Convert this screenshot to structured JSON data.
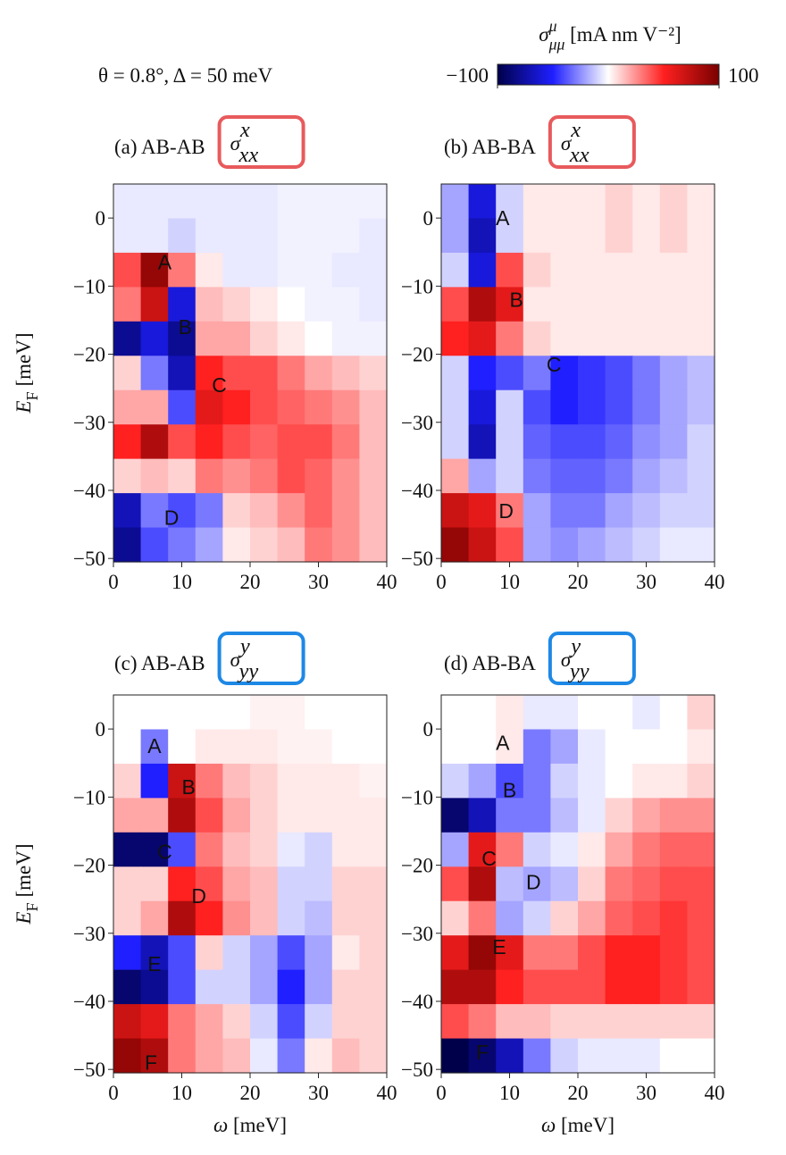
{
  "figure": {
    "title": "θ = 0.8°,  Δ = 50 meV",
    "colorbar": {
      "label": {
        "symbol": "σ",
        "sup": "μ",
        "sub": "μμ",
        "unit": " [mA nm V⁻²]"
      },
      "zlim": [
        -100,
        100
      ],
      "ticks": [
        {
          "value": -100,
          "label": "−100"
        },
        100
      ],
      "colormap": [
        "#00004a",
        "#1f1fff",
        "#ffffff",
        "#ff2020",
        "#7a0000"
      ]
    }
  },
  "chart_data": [
    {
      "type": "heatmap",
      "title": "(a) AB-AB",
      "quantity": {
        "symbol": "σ",
        "sup": "x",
        "sub": "xx",
        "color": "#e85a5c"
      },
      "ylabel": {
        "symbol": "E",
        "sub": "F",
        "unit": " [meV]"
      },
      "xlim": [
        0,
        40
      ],
      "ylim": [
        -50.5,
        5
      ],
      "xticks": [
        0,
        10,
        20,
        30,
        40
      ],
      "yticks": [
        0,
        {
          "value": -10,
          "label": "−10"
        },
        {
          "value": -20,
          "label": "−20"
        },
        {
          "value": -30,
          "label": "−30"
        },
        {
          "value": -40,
          "label": "−40"
        },
        {
          "value": -50,
          "label": "−50"
        }
      ],
      "annotations": [
        "A",
        "B",
        "C",
        "D"
      ],
      "values": [
        [
          -5,
          -5,
          -5,
          -5,
          -5,
          -5,
          -3,
          -3,
          -3,
          -3
        ],
        [
          -5,
          -5,
          -10,
          -5,
          -5,
          -5,
          -3,
          -3,
          -3,
          -5
        ],
        [
          40,
          90,
          30,
          5,
          -5,
          -5,
          -3,
          -3,
          -5,
          -5
        ],
        [
          30,
          70,
          -60,
          15,
          10,
          5,
          0,
          -3,
          -3,
          -5
        ],
        [
          -80,
          -60,
          -80,
          20,
          20,
          10,
          5,
          0,
          -3,
          -3
        ],
        [
          10,
          -30,
          -70,
          50,
          40,
          40,
          30,
          20,
          15,
          10
        ],
        [
          20,
          20,
          -40,
          60,
          50,
          40,
          35,
          30,
          25,
          15
        ],
        [
          50,
          80,
          40,
          50,
          40,
          35,
          40,
          40,
          30,
          15
        ],
        [
          10,
          15,
          10,
          30,
          25,
          30,
          40,
          35,
          25,
          15
        ],
        [
          -70,
          -30,
          -40,
          -30,
          10,
          15,
          25,
          35,
          25,
          15
        ],
        [
          -80,
          -40,
          -30,
          -20,
          5,
          10,
          15,
          30,
          25,
          15
        ]
      ]
    },
    {
      "type": "heatmap",
      "title": "(b) AB-BA",
      "quantity": {
        "symbol": "σ",
        "sup": "x",
        "sub": "xx",
        "color": "#e85a5c"
      },
      "xlim": [
        0,
        40
      ],
      "ylim": [
        -50.5,
        5
      ],
      "xticks": [
        0,
        10,
        20,
        30,
        40
      ],
      "yticks": [
        0,
        {
          "value": -10,
          "label": "−10"
        },
        {
          "value": -20,
          "label": "−20"
        },
        {
          "value": -30,
          "label": "−30"
        },
        {
          "value": -40,
          "label": "−40"
        },
        {
          "value": -50,
          "label": "−50"
        }
      ],
      "annotations": [
        "A",
        "B",
        "C",
        "D"
      ],
      "values": [
        [
          -20,
          -60,
          -10,
          5,
          5,
          5,
          10,
          5,
          10,
          5
        ],
        [
          -20,
          -70,
          -10,
          5,
          5,
          5,
          10,
          5,
          10,
          5
        ],
        [
          -10,
          -60,
          40,
          10,
          5,
          5,
          5,
          5,
          5,
          5
        ],
        [
          40,
          80,
          60,
          5,
          5,
          5,
          5,
          5,
          5,
          5
        ],
        [
          50,
          60,
          30,
          10,
          5,
          5,
          5,
          5,
          5,
          5
        ],
        [
          -10,
          -50,
          -40,
          -30,
          -50,
          -45,
          -40,
          -30,
          -20,
          -15
        ],
        [
          -10,
          -60,
          -10,
          -40,
          -50,
          -45,
          -40,
          -30,
          -20,
          -15
        ],
        [
          -10,
          -70,
          -10,
          -35,
          -40,
          -40,
          -35,
          -25,
          -20,
          -10
        ],
        [
          20,
          -20,
          -10,
          -30,
          -35,
          -35,
          -30,
          -20,
          -15,
          -10
        ],
        [
          70,
          60,
          30,
          -20,
          -30,
          -30,
          -20,
          -15,
          -10,
          -10
        ],
        [
          90,
          70,
          40,
          -20,
          -25,
          -20,
          -15,
          -10,
          -5,
          -5
        ]
      ]
    },
    {
      "type": "heatmap",
      "title": "(c) AB-AB",
      "quantity": {
        "symbol": "σ",
        "sup": "y",
        "sub": "yy",
        "color": "#1e88e5"
      },
      "ylabel": {
        "symbol": "E",
        "sub": "F",
        "unit": " [meV]"
      },
      "xlabel": {
        "symbol": "ω",
        "unit": " [meV]"
      },
      "xlim": [
        0,
        40
      ],
      "ylim": [
        -50.5,
        5
      ],
      "xticks": [
        0,
        10,
        20,
        30,
        40
      ],
      "yticks": [
        0,
        {
          "value": -10,
          "label": "−10"
        },
        {
          "value": -20,
          "label": "−20"
        },
        {
          "value": -30,
          "label": "−30"
        },
        {
          "value": -40,
          "label": "−40"
        },
        {
          "value": -50,
          "label": "−50"
        }
      ],
      "annotations": [
        "A",
        "B",
        "C",
        "D",
        "E",
        "F"
      ],
      "values": [
        [
          0,
          0,
          0,
          0,
          0,
          3,
          3,
          0,
          0,
          0
        ],
        [
          0,
          -30,
          0,
          5,
          5,
          5,
          3,
          3,
          0,
          0
        ],
        [
          10,
          -50,
          70,
          30,
          15,
          10,
          5,
          5,
          5,
          3
        ],
        [
          20,
          20,
          80,
          40,
          20,
          10,
          5,
          5,
          5,
          5
        ],
        [
          -90,
          -90,
          -40,
          30,
          15,
          10,
          -5,
          -10,
          5,
          5
        ],
        [
          10,
          10,
          50,
          40,
          20,
          15,
          -10,
          -10,
          10,
          10
        ],
        [
          10,
          20,
          80,
          50,
          25,
          15,
          -10,
          -15,
          10,
          10
        ],
        [
          -50,
          -70,
          -40,
          10,
          -10,
          -20,
          -40,
          -20,
          5,
          10
        ],
        [
          -90,
          -80,
          -40,
          -10,
          -10,
          -20,
          -50,
          -20,
          10,
          10
        ],
        [
          70,
          60,
          30,
          20,
          10,
          -10,
          -40,
          -10,
          10,
          10
        ],
        [
          90,
          80,
          30,
          20,
          15,
          -5,
          -30,
          5,
          15,
          10
        ]
      ]
    },
    {
      "type": "heatmap",
      "title": "(d) AB-BA",
      "quantity": {
        "symbol": "σ",
        "sup": "y",
        "sub": "yy",
        "color": "#1e88e5"
      },
      "xlabel": {
        "symbol": "ω",
        "unit": " [meV]"
      },
      "xlim": [
        0,
        40
      ],
      "ylim": [
        -50.5,
        5
      ],
      "xticks": [
        0,
        10,
        20,
        30,
        40
      ],
      "yticks": [
        0,
        {
          "value": -10,
          "label": "−10"
        },
        {
          "value": -20,
          "label": "−20"
        },
        {
          "value": -30,
          "label": "−30"
        },
        {
          "value": -40,
          "label": "−40"
        },
        {
          "value": -50,
          "label": "−50"
        }
      ],
      "annotations": [
        "A",
        "B",
        "C",
        "D",
        "E",
        "F"
      ],
      "values": [
        [
          0,
          0,
          5,
          -5,
          -5,
          0,
          0,
          -5,
          0,
          10
        ],
        [
          0,
          0,
          5,
          -30,
          -20,
          -5,
          0,
          0,
          0,
          5
        ],
        [
          -10,
          -20,
          -40,
          -30,
          -10,
          -5,
          0,
          5,
          5,
          10
        ],
        [
          -90,
          -70,
          -30,
          -30,
          -15,
          -5,
          10,
          20,
          25,
          25
        ],
        [
          -20,
          60,
          30,
          -10,
          -5,
          5,
          20,
          30,
          35,
          35
        ],
        [
          40,
          80,
          -15,
          -20,
          -15,
          10,
          30,
          35,
          40,
          40
        ],
        [
          10,
          30,
          -20,
          -10,
          10,
          20,
          35,
          40,
          45,
          40
        ],
        [
          60,
          90,
          60,
          30,
          30,
          40,
          50,
          50,
          45,
          40
        ],
        [
          80,
          80,
          50,
          40,
          40,
          40,
          50,
          50,
          45,
          40
        ],
        [
          40,
          30,
          15,
          15,
          10,
          10,
          10,
          10,
          10,
          10
        ],
        [
          -100,
          -90,
          -70,
          -30,
          -10,
          -5,
          -5,
          -5,
          0,
          0
        ]
      ]
    }
  ]
}
